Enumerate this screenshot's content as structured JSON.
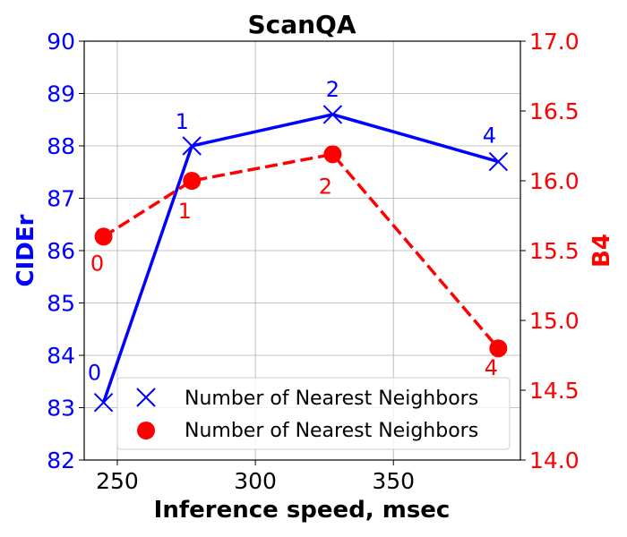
{
  "chart_data": {
    "type": "line",
    "title": "ScanQA",
    "xlabel": "Inference speed, msec",
    "ylabel_left": "CIDEr",
    "ylabel_right": "B4",
    "xlim": [
      238,
      396
    ],
    "xticks": [
      250,
      300,
      350
    ],
    "ylim_left": [
      82,
      90
    ],
    "yticks_left": [
      82,
      83,
      84,
      85,
      86,
      87,
      88,
      89,
      90
    ],
    "ylim_right": [
      14.0,
      17.0
    ],
    "yticks_right": [
      "14.0",
      "14.5",
      "15.0",
      "15.5",
      "16.0",
      "16.5",
      "17.0"
    ],
    "grid": true,
    "legend_position": "lower-right",
    "series": [
      {
        "name": "Number of Nearest Neighbors",
        "axis": "left",
        "color": "#0000ff",
        "line_style": "solid",
        "marker": "x",
        "x": [
          245,
          277,
          328,
          388
        ],
        "y": [
          83.1,
          88.0,
          88.6,
          87.7
        ],
        "labels": [
          "0",
          "1",
          "2",
          "4"
        ]
      },
      {
        "name": "Number of Nearest Neighbors",
        "axis": "right",
        "color": "#ff0000",
        "line_style": "dashed",
        "marker": "circle",
        "x": [
          245,
          277,
          328,
          388
        ],
        "y": [
          15.6,
          16.0,
          16.19,
          14.8
        ],
        "labels": [
          "0",
          "1",
          "2",
          "4"
        ]
      }
    ]
  }
}
